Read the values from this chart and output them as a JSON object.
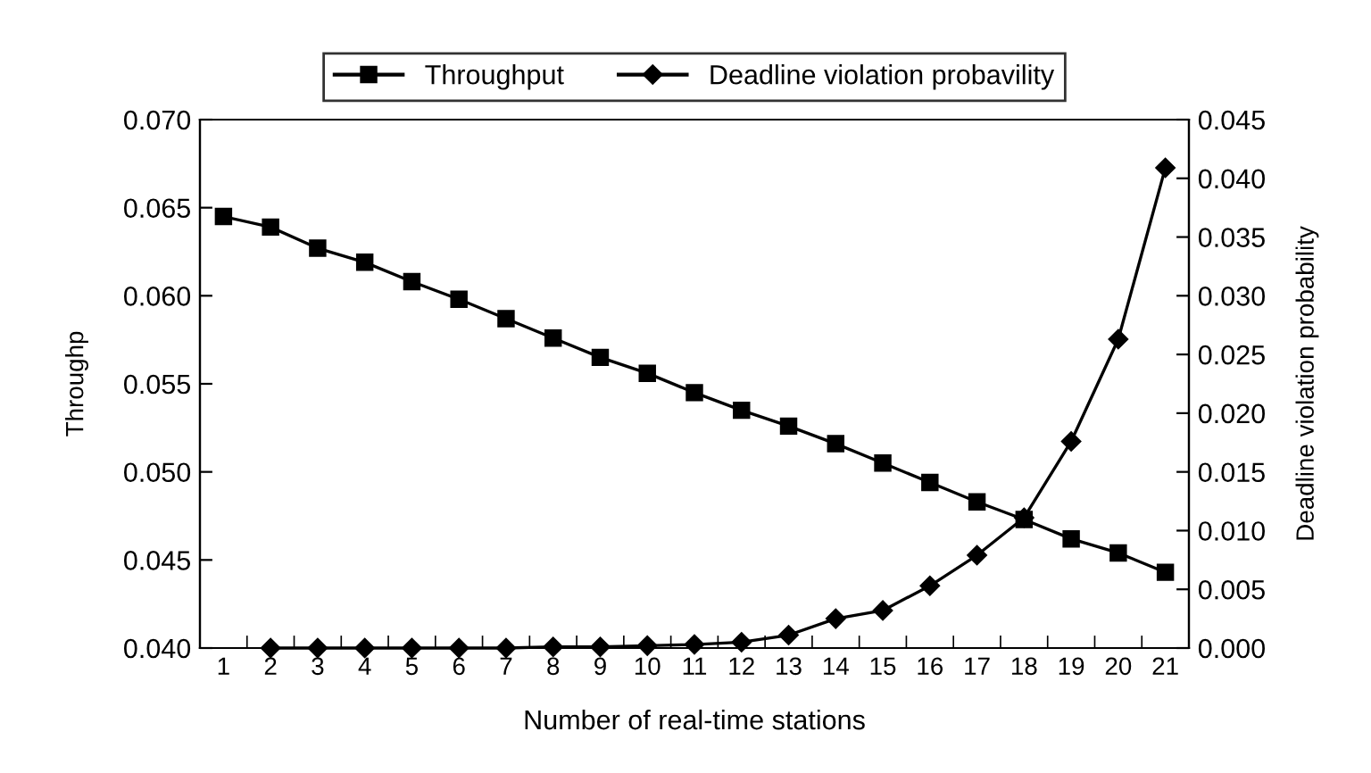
{
  "chart_data": {
    "type": "line",
    "xlabel": "Number of real-time stations",
    "ylabel": "Throughp",
    "y2label": "Deadline violation probability",
    "categories": [
      "1",
      "2",
      "3",
      "4",
      "5",
      "6",
      "7",
      "8",
      "9",
      "10",
      "11",
      "12",
      "13",
      "14",
      "15",
      "16",
      "17",
      "18",
      "19",
      "20",
      "21"
    ],
    "series": [
      {
        "name": "Throughput",
        "color": "#000000",
        "marker": "square",
        "values": [
          0.0645,
          0.0639,
          0.0627,
          0.0619,
          0.0608,
          0.0598,
          0.0587,
          0.0576,
          0.0565,
          0.0556,
          0.0545,
          0.0535,
          0.0526,
          0.0516,
          0.0505,
          0.0494,
          0.0483,
          0.0473,
          0.0462,
          0.0454,
          0.0443
        ]
      },
      {
        "name": "Deadline violation probavility",
        "color": "#000000",
        "marker": "diamond",
        "axis": "y2",
        "values": [
          null,
          0.0,
          0.0,
          0.0,
          0.0,
          0.0,
          0.0,
          0.0001,
          0.0001,
          0.0002,
          0.0003,
          0.0005,
          0.0011,
          0.0025,
          0.0032,
          0.0053,
          0.0079,
          0.0111,
          0.0176,
          0.0263,
          0.0409
        ]
      }
    ],
    "ylim": [
      0.04,
      0.07
    ],
    "yticks": [
      {
        "value": 0.04,
        "label": "0.040"
      },
      {
        "value": 0.045,
        "label": "0.045"
      },
      {
        "value": 0.05,
        "label": "0.050"
      },
      {
        "value": 0.055,
        "label": "0.055"
      },
      {
        "value": 0.06,
        "label": "0.060"
      },
      {
        "value": 0.065,
        "label": "0.065"
      },
      {
        "value": 0.07,
        "label": "0.070"
      }
    ],
    "y2lim": [
      0.0,
      0.045
    ],
    "y2ticks": [
      {
        "value": 0.0,
        "label": "0.000"
      },
      {
        "value": 0.005,
        "label": "0.005"
      },
      {
        "value": 0.01,
        "label": "0.010"
      },
      {
        "value": 0.015,
        "label": "0.015"
      },
      {
        "value": 0.02,
        "label": "0.020"
      },
      {
        "value": 0.025,
        "label": "0.025"
      },
      {
        "value": 0.03,
        "label": "0.030"
      },
      {
        "value": 0.035,
        "label": "0.035"
      },
      {
        "value": 0.04,
        "label": "0.040"
      },
      {
        "value": 0.045,
        "label": "0.045"
      }
    ],
    "legend": "top",
    "grid": false,
    "line_style": "solid"
  }
}
